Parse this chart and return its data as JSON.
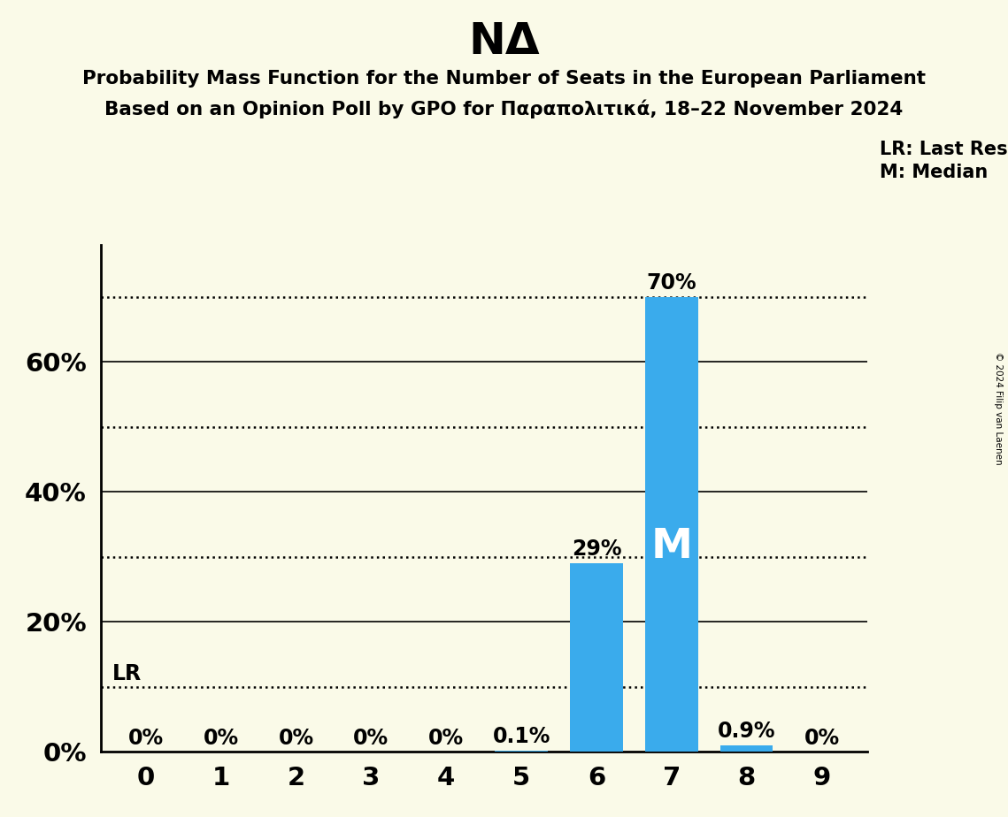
{
  "title": "NΔ",
  "subtitle_line1": "Probability Mass Function for the Number of Seats in the European Parliament",
  "subtitle_line2": "Based on an Opinion Poll by GPO for Παραπολιτικά, 18–22 November 2024",
  "categories": [
    0,
    1,
    2,
    3,
    4,
    5,
    6,
    7,
    8,
    9
  ],
  "values": [
    0.0,
    0.0,
    0.0,
    0.0,
    0.0,
    0.001,
    0.29,
    0.7,
    0.009,
    0.0
  ],
  "bar_color": "#3aabec",
  "median_seat": 7,
  "lr_value": 0.1,
  "lr_label": "LR",
  "legend_lr": "LR: Last Result",
  "legend_m": "M: Median",
  "background_color": "#fafae8",
  "bar_labels": [
    "0%",
    "0%",
    "0%",
    "0%",
    "0%",
    "0.1%",
    "29%",
    "70%",
    "0.9%",
    "0%"
  ],
  "yticks": [
    0.0,
    0.2,
    0.4,
    0.6
  ],
  "ytick_labels": [
    "0%",
    "20%",
    "40%",
    "60%"
  ],
  "solid_lines": [
    0.2,
    0.4,
    0.6
  ],
  "dotted_lines": [
    0.1,
    0.3,
    0.5,
    0.7
  ],
  "ylim": [
    0,
    0.78
  ],
  "copyright_text": "© 2024 Filip van Laenen"
}
